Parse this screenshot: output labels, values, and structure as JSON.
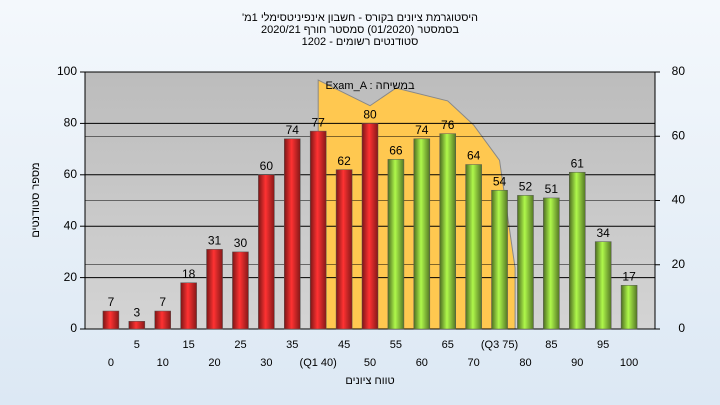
{
  "chart_data": {
    "type": "bar",
    "title": "היסטוגרמת ציונים בקורס - חשבון אינפיניטסימלי 1מ'",
    "subtitles": [
      "בסמסטר  (01/2020)  סמסטר חורף 2020/21",
      "סטודנטים רשומים - 1202"
    ],
    "ylabel": "מספר סטודנטים",
    "xlabel": "טווח ציונים",
    "annotation": "Exam_A : במשיחה",
    "x": [
      0,
      5,
      10,
      15,
      20,
      25,
      30,
      35,
      40,
      45,
      50,
      55,
      60,
      65,
      70,
      75,
      80,
      85,
      90,
      95,
      100
    ],
    "values": [
      7,
      3,
      7,
      18,
      31,
      30,
      60,
      74,
      77,
      62,
      80,
      66,
      74,
      76,
      64,
      54,
      52,
      51,
      61,
      34,
      17
    ],
    "colors": [
      "#e02828",
      "#e02828",
      "#e02828",
      "#e02828",
      "#e02828",
      "#e02828",
      "#e02828",
      "#e02828",
      "#e02828",
      "#e02828",
      "#e02828",
      "#8cc63c",
      "#8cc63c",
      "#8cc63c",
      "#8cc63c",
      "#8cc63c",
      "#8cc63c",
      "#8cc63c",
      "#8cc63c",
      "#8cc63c",
      "#8cc63c"
    ],
    "xlim": [
      -5,
      105
    ],
    "xticks": [
      0,
      5,
      10,
      15,
      20,
      25,
      30,
      35,
      {
        "value": 40,
        "label": "(Q1 40)"
      },
      45,
      50,
      55,
      60,
      65,
      70,
      {
        "value": 75,
        "label": "(Q3 75)"
      },
      80,
      85,
      90,
      95,
      100
    ],
    "ylim": [
      0,
      100
    ],
    "yticks": [
      0,
      20,
      40,
      60,
      80,
      100
    ],
    "y2lim": [
      0,
      80
    ],
    "y2ticks": [
      0,
      20,
      40,
      60,
      80
    ],
    "area": {
      "axis": "y2",
      "color": "#ffc850",
      "x": [
        40,
        50,
        55,
        65,
        70,
        75,
        78
      ],
      "values": [
        77.5,
        69.5,
        75,
        71,
        63.5,
        52.5,
        19
      ]
    },
    "grid": true
  }
}
